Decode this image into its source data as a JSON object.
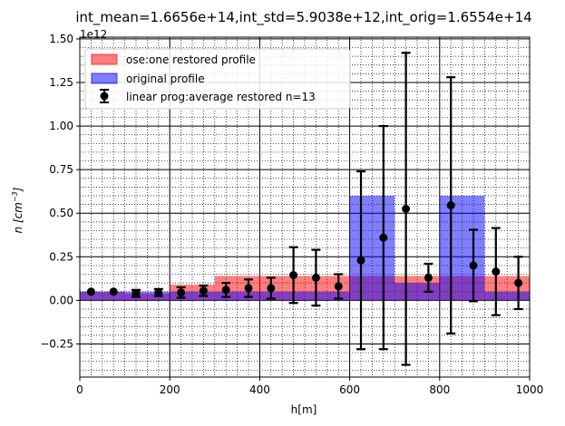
{
  "chart_data": {
    "type": "bar",
    "title": "int_mean=1.6656e+14,int_std=5.9038e+12,int_orig=1.6554e+14",
    "xlabel": "h[m]",
    "ylabel_main": "n [cm",
    "ylabel_sup": "−3",
    "ylabel_close": "]",
    "offset_text": "1e12",
    "xlim": [
      0,
      1000
    ],
    "ylim": [
      -0.44,
      1.51
    ],
    "xticks": [
      0,
      200,
      400,
      600,
      800,
      1000
    ],
    "xtick_labels": [
      "0",
      "200",
      "400",
      "600",
      "800",
      "1000"
    ],
    "yticks": [
      -0.25,
      0.0,
      0.25,
      0.5,
      0.75,
      1.0,
      1.25,
      1.5
    ],
    "ytick_labels": [
      "−0.25",
      "0.00",
      "0.25",
      "0.50",
      "0.75",
      "1.00",
      "1.25",
      "1.50"
    ],
    "grid": true,
    "legend_position": "upper-left",
    "colors": {
      "restored": "#ff0000",
      "original": "#0000ff",
      "points": "#000000"
    },
    "restored_profile": {
      "name": "ose:one restored profile",
      "bars": [
        {
          "x0": 0,
          "x1": 100,
          "value": 0.05
        },
        {
          "x0": 100,
          "x1": 200,
          "value": 0.04
        },
        {
          "x0": 200,
          "x1": 300,
          "value": 0.09
        },
        {
          "x0": 300,
          "x1": 600,
          "value": 0.14
        },
        {
          "x0": 600,
          "x1": 700,
          "value": 0.14
        },
        {
          "x0": 700,
          "x1": 750,
          "value": 0.14
        },
        {
          "x0": 750,
          "x1": 800,
          "value": 0.14
        },
        {
          "x0": 800,
          "x1": 1000,
          "value": 0.14
        }
      ]
    },
    "original_profile": {
      "name": "original profile",
      "bars": [
        {
          "x0": 0,
          "x1": 100,
          "value": 0.05
        },
        {
          "x0": 100,
          "x1": 200,
          "value": 0.05
        },
        {
          "x0": 200,
          "x1": 300,
          "value": 0.05
        },
        {
          "x0": 300,
          "x1": 600,
          "value": 0.05
        },
        {
          "x0": 600,
          "x1": 700,
          "value": 0.6
        },
        {
          "x0": 700,
          "x1": 750,
          "value": 0.1
        },
        {
          "x0": 750,
          "x1": 800,
          "value": 0.1
        },
        {
          "x0": 800,
          "x1": 900,
          "value": 0.6
        },
        {
          "x0": 900,
          "x1": 1000,
          "value": 0.05
        }
      ]
    },
    "average_restored": {
      "name": "linear prog:average restored n=13",
      "points": [
        {
          "x": 25,
          "y": 0.05,
          "err": 0.0
        },
        {
          "x": 75,
          "y": 0.05,
          "err": 0.0
        },
        {
          "x": 125,
          "y": 0.04,
          "err": 0.02
        },
        {
          "x": 175,
          "y": 0.045,
          "err": 0.02
        },
        {
          "x": 225,
          "y": 0.045,
          "err": 0.03
        },
        {
          "x": 275,
          "y": 0.055,
          "err": 0.03
        },
        {
          "x": 325,
          "y": 0.06,
          "err": 0.04
        },
        {
          "x": 375,
          "y": 0.07,
          "err": 0.05
        },
        {
          "x": 425,
          "y": 0.07,
          "err": 0.06
        },
        {
          "x": 475,
          "y": 0.145,
          "err": 0.16
        },
        {
          "x": 525,
          "y": 0.13,
          "err": 0.16
        },
        {
          "x": 575,
          "y": 0.08,
          "err": 0.07
        },
        {
          "x": 625,
          "y": 0.23,
          "err": 0.51
        },
        {
          "x": 675,
          "y": 0.36,
          "err": 0.64
        },
        {
          "x": 725,
          "y": 0.525,
          "err": 0.895
        },
        {
          "x": 775,
          "y": 0.13,
          "err": 0.08
        },
        {
          "x": 825,
          "y": 0.545,
          "err": 0.735
        },
        {
          "x": 875,
          "y": 0.2,
          "err": 0.205
        },
        {
          "x": 925,
          "y": 0.165,
          "err": 0.25
        },
        {
          "x": 975,
          "y": 0.1,
          "err": 0.15
        }
      ]
    }
  }
}
